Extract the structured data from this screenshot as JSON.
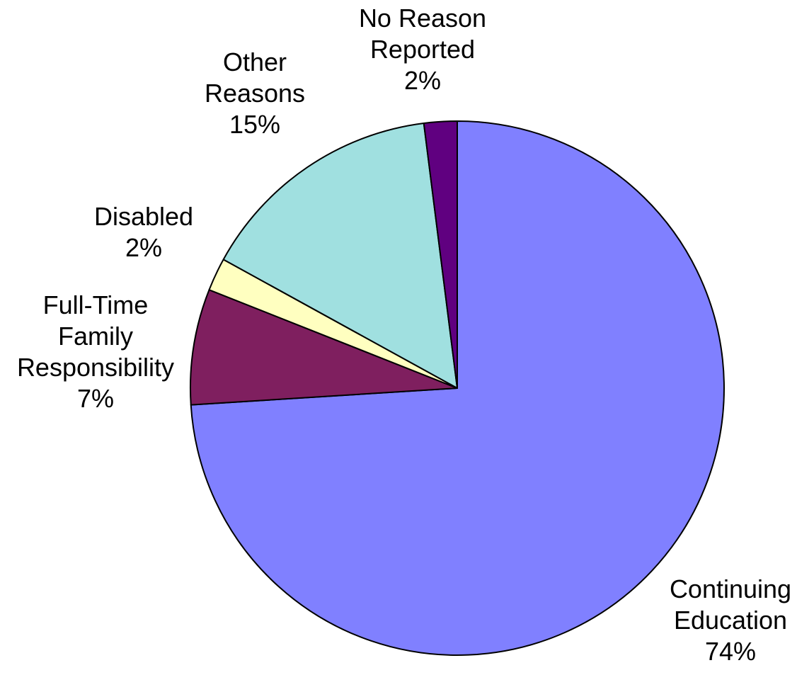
{
  "chart_data": {
    "type": "pie",
    "title": "",
    "start_angle_deg": 0,
    "direction": "clockwise",
    "slices": [
      {
        "label_lines": [
          "Continuing",
          "Education"
        ],
        "value": 74,
        "value_label": "74%",
        "color": "#8080ff"
      },
      {
        "label_lines": [
          "Full-Time",
          "Family",
          "Responsibility"
        ],
        "value": 7,
        "value_label": "7%",
        "color": "#7f1f5f"
      },
      {
        "label_lines": [
          "Disabled"
        ],
        "value": 2,
        "value_label": "2%",
        "color": "#ffffc0"
      },
      {
        "label_lines": [
          "Other",
          "Reasons"
        ],
        "value": 15,
        "value_label": "15%",
        "color": "#a0e0e0"
      },
      {
        "label_lines": [
          "No Reason",
          "Reported"
        ],
        "value": 2,
        "value_label": "2%",
        "color": "#600080"
      }
    ]
  }
}
